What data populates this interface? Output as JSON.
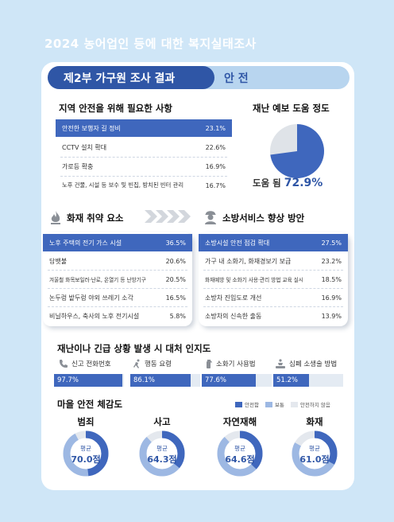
{
  "header": {
    "title": "2024 농어업인 등에 대한 복지실태조사"
  },
  "section": {
    "label": "제2부 가구원 조사 결과",
    "topic": "안 전"
  },
  "safety_needs": {
    "title": "지역 안전을 위해 필요한 사항",
    "items": [
      {
        "label": "안전한 보행자 길 정비",
        "value": "23.1%"
      },
      {
        "label": "CCTV 설치 확대",
        "value": "22.6%"
      },
      {
        "label": "가로등 확충",
        "value": "16.9%"
      },
      {
        "label": "노후 건물, 시설 등 보수 및 빈집, 방치된 빈터 관리",
        "value": "16.7%"
      }
    ]
  },
  "disaster_help": {
    "title": "재난 예보 도움 정도",
    "caption": "도움 됨",
    "value_text": "72.9%",
    "value": 72.9
  },
  "fire_risk": {
    "title": "화재 취약 요소",
    "items": [
      {
        "label": "노후 주택의 전기 가스 시설",
        "value": "36.5%"
      },
      {
        "label": "담뱃불",
        "value": "20.6%"
      },
      {
        "label": "겨울철 화목보일러·난로, 온열기 등 난방기구",
        "value": "20.5%"
      },
      {
        "label": "논두렁 밭두렁 야외 쓰레기 소각",
        "value": "16.5%"
      },
      {
        "label": "비닐하우스, 축사의 노후 전기시설",
        "value": "5.8%"
      }
    ]
  },
  "fire_service": {
    "title": "소방서비스 향상 방안",
    "items": [
      {
        "label": "소방시설 안전 점검 확대",
        "value": "27.5%"
      },
      {
        "label": "가구 내 소화기, 화재경보기 보급",
        "value": "23.2%"
      },
      {
        "label": "화재예방 및 소화기 사용·관리 방법 교육 실시",
        "value": "18.5%"
      },
      {
        "label": "소방차 진입도로 개선",
        "value": "16.9%"
      },
      {
        "label": "소방차의 신속한 출동",
        "value": "13.9%"
      }
    ]
  },
  "awareness": {
    "title": "재난이나 긴급 상황 발생 시 대처 인지도",
    "items": [
      {
        "label": "신고 전화번호",
        "value_text": "97.7%",
        "value": 97.7,
        "icon": "phone-icon"
      },
      {
        "label": "행동 요령",
        "value_text": "86.1%",
        "value": 86.1,
        "icon": "running-person-icon"
      },
      {
        "label": "소화기 사용법",
        "value_text": "77.6%",
        "value": 77.6,
        "icon": "fire-extinguisher-icon"
      },
      {
        "label": "심폐 소생술 방법",
        "value_text": "51.2%",
        "value": 51.2,
        "icon": "cpr-icon"
      }
    ]
  },
  "perceived_safety": {
    "title": "마을 안전 체감도",
    "legend": [
      {
        "label": "안전함",
        "color": "#3f67bd"
      },
      {
        "label": "보통",
        "color": "#9db8e3"
      },
      {
        "label": "안전하지 않음",
        "color": "#e4e8ee"
      }
    ],
    "avg_label": "평균",
    "items": [
      {
        "label": "범죄",
        "score_text": "70.0점",
        "safe": 48,
        "normal": 44
      },
      {
        "label": "사고",
        "score_text": "64.3점",
        "safe": 36,
        "normal": 52
      },
      {
        "label": "자연재해",
        "score_text": "64.6점",
        "safe": 37,
        "normal": 51
      },
      {
        "label": "화재",
        "score_text": "61.0점",
        "safe": 33,
        "normal": 50
      }
    ]
  },
  "colors": {
    "primary": "#2f56a6",
    "accent": "#3f67bd",
    "light": "#b8d5ef",
    "background": "#cfe6f7"
  }
}
